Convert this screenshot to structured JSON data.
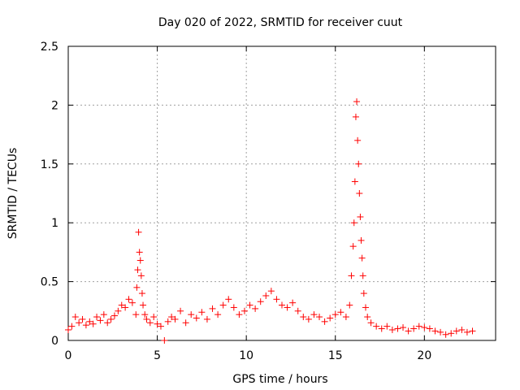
{
  "chart_data": {
    "type": "scatter",
    "title": "Day 020 of 2022, SRMTID for receiver cuut",
    "xlabel": "GPS time / hours",
    "ylabel": "SRMTID / TECUs",
    "xlim": [
      0,
      24
    ],
    "ylim": [
      0,
      2.5
    ],
    "xticks": [
      0,
      5,
      10,
      15,
      20
    ],
    "xtick_labels": [
      "0",
      "5",
      "10",
      "15",
      "20"
    ],
    "yticks": [
      0,
      0.5,
      1,
      1.5,
      2,
      2.5
    ],
    "ytick_labels": [
      "0",
      "0.5",
      "1",
      "1.5",
      "2",
      "2.5"
    ],
    "grid": true,
    "marker": "+",
    "marker_color": "#ff0000",
    "series": [
      {
        "name": "SRMTID",
        "x": [
          0.0,
          0.2,
          0.4,
          0.6,
          0.8,
          1.0,
          1.2,
          1.4,
          1.6,
          1.8,
          2.0,
          2.2,
          2.4,
          2.6,
          2.8,
          3.0,
          3.2,
          3.4,
          3.6,
          3.8,
          3.85,
          3.9,
          3.95,
          4.0,
          4.05,
          4.1,
          4.15,
          4.2,
          4.3,
          4.4,
          4.6,
          4.8,
          5.0,
          5.2,
          5.4,
          5.6,
          5.8,
          6.0,
          6.3,
          6.6,
          6.9,
          7.2,
          7.5,
          7.8,
          8.1,
          8.4,
          8.7,
          9.0,
          9.3,
          9.6,
          9.9,
          10.2,
          10.5,
          10.8,
          11.1,
          11.4,
          11.7,
          12.0,
          12.3,
          12.6,
          12.9,
          13.2,
          13.5,
          13.8,
          14.1,
          14.4,
          14.7,
          15.0,
          15.3,
          15.6,
          15.8,
          15.9,
          16.0,
          16.05,
          16.1,
          16.15,
          16.2,
          16.25,
          16.3,
          16.35,
          16.4,
          16.45,
          16.5,
          16.55,
          16.6,
          16.7,
          16.8,
          17.0,
          17.3,
          17.6,
          17.9,
          18.2,
          18.5,
          18.8,
          19.1,
          19.4,
          19.7,
          20.0,
          20.3,
          20.6,
          20.9,
          21.2,
          21.5,
          21.8,
          22.1,
          22.4,
          22.7
        ],
        "y": [
          0.09,
          0.12,
          0.2,
          0.15,
          0.18,
          0.13,
          0.16,
          0.14,
          0.2,
          0.17,
          0.22,
          0.15,
          0.18,
          0.21,
          0.25,
          0.3,
          0.28,
          0.35,
          0.32,
          0.22,
          0.45,
          0.6,
          0.92,
          0.75,
          0.68,
          0.55,
          0.4,
          0.3,
          0.22,
          0.18,
          0.15,
          0.2,
          0.14,
          0.12,
          0.0,
          0.16,
          0.2,
          0.18,
          0.25,
          0.15,
          0.22,
          0.19,
          0.24,
          0.18,
          0.27,
          0.22,
          0.3,
          0.35,
          0.28,
          0.22,
          0.25,
          0.3,
          0.27,
          0.33,
          0.38,
          0.42,
          0.35,
          0.3,
          0.28,
          0.32,
          0.25,
          0.2,
          0.18,
          0.22,
          0.2,
          0.16,
          0.19,
          0.22,
          0.24,
          0.2,
          0.3,
          0.55,
          0.8,
          1.0,
          1.35,
          1.9,
          2.03,
          1.7,
          1.5,
          1.25,
          1.05,
          0.85,
          0.7,
          0.55,
          0.4,
          0.28,
          0.2,
          0.15,
          0.12,
          0.1,
          0.12,
          0.09,
          0.1,
          0.11,
          0.08,
          0.1,
          0.12,
          0.11,
          0.1,
          0.08,
          0.07,
          0.05,
          0.06,
          0.08,
          0.09,
          0.07,
          0.08
        ]
      }
    ]
  }
}
